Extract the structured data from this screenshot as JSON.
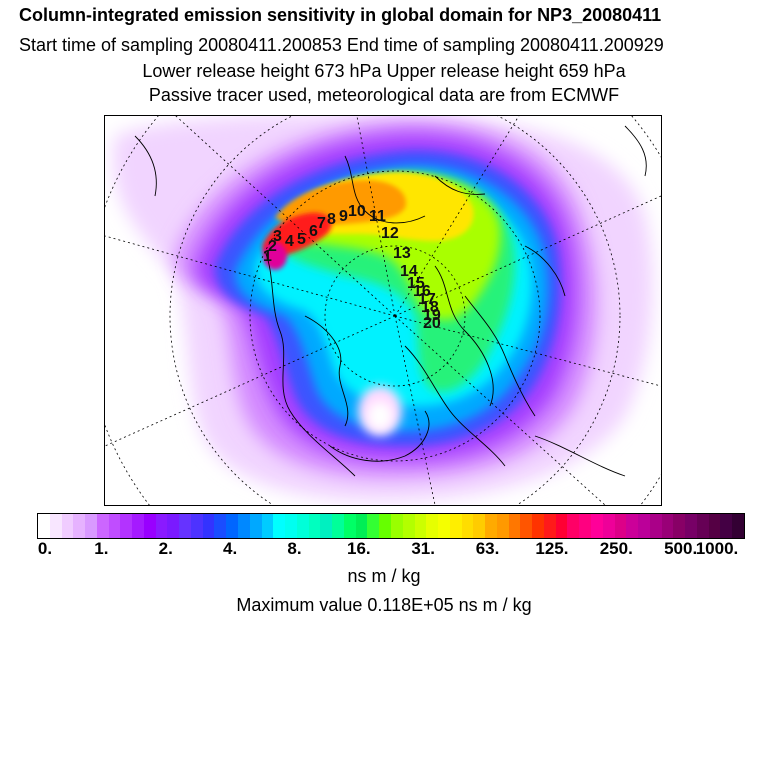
{
  "header": {
    "title": "Column-integrated emission sensitivity in global domain for NP3_20080411",
    "sampling": "Start time of sampling 20080411.200853     End time of sampling 20080411.200929",
    "release": "Lower release height  673 hPa        Upper release height  659 hPa",
    "note": "Passive tracer used, meteorological data are from ECMWF"
  },
  "colorbar": {
    "labels": [
      "0.",
      "1.",
      "2.",
      "4.",
      "8.",
      "16.",
      "31.",
      "63.",
      "125.",
      "250.",
      "500.",
      "1000."
    ],
    "colors": [
      "#ffffff",
      "#f8e6ff",
      "#f0ccff",
      "#e6b2ff",
      "#d999ff",
      "#cc66ff",
      "#c04dff",
      "#b333ff",
      "#a51aff",
      "#9900ff",
      "#8a1aff",
      "#7a1aff",
      "#6633ff",
      "#4d33ff",
      "#3333ff",
      "#1a4dff",
      "#0066ff",
      "#0088ff",
      "#00a8ff",
      "#00ccff",
      "#00ffff",
      "#00fff0",
      "#00ffd9",
      "#00ffbf",
      "#00f0c0",
      "#00ff99",
      "#00ff66",
      "#00ee55",
      "#33ff33",
      "#66ff00",
      "#99ff00",
      "#b3ff00",
      "#ccff00",
      "#e6ff00",
      "#f5ff00",
      "#ffee00",
      "#ffdd00",
      "#ffcc00",
      "#ffaa00",
      "#ff9900",
      "#ff7700",
      "#ff5500",
      "#ff3300",
      "#ff1a1a",
      "#ff0033",
      "#ff0066",
      "#ff0080",
      "#ff0099",
      "#ee0099",
      "#dd0088",
      "#cc0099",
      "#bb0099",
      "#aa0088",
      "#990077",
      "#880066",
      "#770066",
      "#660055",
      "#550044",
      "#440044",
      "#330033"
    ],
    "units": "ns m / kg",
    "max_value": "Maximum value  0.118E+05 ns m / kg"
  },
  "map": {
    "points": [
      "1",
      "2",
      "3",
      "4",
      "5",
      "6",
      "7",
      "8",
      "9",
      "10",
      "11",
      "12",
      "13",
      "14",
      "15",
      "16",
      "17",
      "18",
      "19",
      "20"
    ]
  }
}
